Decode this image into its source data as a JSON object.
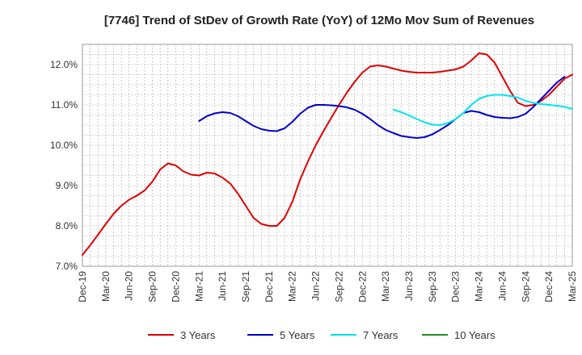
{
  "chart_data": {
    "type": "line",
    "title": "[7746]  Trend of StDev of Growth Rate (YoY) of 12Mo Mov Sum of Revenues",
    "xlabel": "",
    "ylabel": "",
    "ylim": [
      7.0,
      12.5
    ],
    "yticks": [
      7.0,
      8.0,
      9.0,
      10.0,
      11.0,
      12.0
    ],
    "ytick_labels": [
      "7.0%",
      "8.0%",
      "9.0%",
      "10.0%",
      "11.0%",
      "12.0%"
    ],
    "x_tick_labels": [
      "Dec-19",
      "Mar-20",
      "Jun-20",
      "Sep-20",
      "Dec-20",
      "Mar-21",
      "Jun-21",
      "Sep-21",
      "Dec-21",
      "Mar-22",
      "Jun-22",
      "Sep-22",
      "Dec-22",
      "Mar-23",
      "Jun-23",
      "Sep-23",
      "Dec-23",
      "Mar-24",
      "Jun-24",
      "Sep-24",
      "Dec-24",
      "Mar-25"
    ],
    "x_unit": "months since Dec-19",
    "xlim": [
      0,
      63
    ],
    "grid": true,
    "legend_position": "bottom",
    "series": [
      {
        "name": "3 Years",
        "color": "#dd0000",
        "points": [
          [
            0,
            7.28
          ],
          [
            1,
            7.52
          ],
          [
            2,
            7.78
          ],
          [
            3,
            8.05
          ],
          [
            4,
            8.3
          ],
          [
            5,
            8.5
          ],
          [
            6,
            8.65
          ],
          [
            7,
            8.75
          ],
          [
            8,
            8.88
          ],
          [
            9,
            9.1
          ],
          [
            10,
            9.4
          ],
          [
            11,
            9.55
          ],
          [
            12,
            9.5
          ],
          [
            13,
            9.35
          ],
          [
            14,
            9.27
          ],
          [
            15,
            9.25
          ],
          [
            16,
            9.32
          ],
          [
            17,
            9.3
          ],
          [
            18,
            9.2
          ],
          [
            19,
            9.05
          ],
          [
            20,
            8.8
          ],
          [
            21,
            8.5
          ],
          [
            22,
            8.2
          ],
          [
            23,
            8.05
          ],
          [
            24,
            8.0
          ],
          [
            25,
            8.0
          ],
          [
            26,
            8.2
          ],
          [
            27,
            8.6
          ],
          [
            28,
            9.15
          ],
          [
            29,
            9.6
          ],
          [
            30,
            10.0
          ],
          [
            31,
            10.35
          ],
          [
            32,
            10.68
          ],
          [
            33,
            11.0
          ],
          [
            34,
            11.3
          ],
          [
            35,
            11.57
          ],
          [
            36,
            11.8
          ],
          [
            37,
            11.95
          ],
          [
            38,
            11.98
          ],
          [
            39,
            11.95
          ],
          [
            40,
            11.9
          ],
          [
            41,
            11.85
          ],
          [
            42,
            11.82
          ],
          [
            43,
            11.8
          ],
          [
            44,
            11.8
          ],
          [
            45,
            11.8
          ],
          [
            46,
            11.82
          ],
          [
            47,
            11.85
          ],
          [
            48,
            11.88
          ],
          [
            49,
            11.95
          ],
          [
            50,
            12.1
          ],
          [
            51,
            12.28
          ],
          [
            52,
            12.25
          ],
          [
            53,
            12.05
          ],
          [
            54,
            11.7
          ],
          [
            55,
            11.35
          ],
          [
            56,
            11.05
          ],
          [
            57,
            10.97
          ],
          [
            58,
            11.0
          ],
          [
            59,
            11.1
          ],
          [
            60,
            11.25
          ],
          [
            61,
            11.45
          ],
          [
            62,
            11.65
          ],
          [
            63,
            11.75
          ]
        ]
      },
      {
        "name": "5 Years",
        "color": "#0000cc",
        "points": [
          [
            15,
            10.6
          ],
          [
            16,
            10.72
          ],
          [
            17,
            10.79
          ],
          [
            18,
            10.82
          ],
          [
            19,
            10.8
          ],
          [
            20,
            10.72
          ],
          [
            21,
            10.6
          ],
          [
            22,
            10.48
          ],
          [
            23,
            10.4
          ],
          [
            24,
            10.36
          ],
          [
            25,
            10.35
          ],
          [
            26,
            10.42
          ],
          [
            27,
            10.58
          ],
          [
            28,
            10.78
          ],
          [
            29,
            10.93
          ],
          [
            30,
            11.0
          ],
          [
            31,
            11.0
          ],
          [
            32,
            10.99
          ],
          [
            33,
            10.97
          ],
          [
            34,
            10.94
          ],
          [
            35,
            10.88
          ],
          [
            36,
            10.78
          ],
          [
            37,
            10.65
          ],
          [
            38,
            10.5
          ],
          [
            39,
            10.38
          ],
          [
            40,
            10.3
          ],
          [
            41,
            10.23
          ],
          [
            42,
            10.2
          ],
          [
            43,
            10.18
          ],
          [
            44,
            10.2
          ],
          [
            45,
            10.27
          ],
          [
            46,
            10.38
          ],
          [
            47,
            10.5
          ],
          [
            48,
            10.65
          ],
          [
            49,
            10.8
          ],
          [
            50,
            10.85
          ],
          [
            51,
            10.82
          ],
          [
            52,
            10.75
          ],
          [
            53,
            10.7
          ],
          [
            54,
            10.68
          ],
          [
            55,
            10.67
          ],
          [
            56,
            10.7
          ],
          [
            57,
            10.78
          ],
          [
            58,
            10.95
          ],
          [
            59,
            11.15
          ],
          [
            60,
            11.35
          ],
          [
            61,
            11.55
          ],
          [
            62,
            11.7
          ]
        ]
      },
      {
        "name": "7 Years",
        "color": "#00e5ee",
        "points": [
          [
            40,
            10.88
          ],
          [
            41,
            10.82
          ],
          [
            42,
            10.74
          ],
          [
            43,
            10.65
          ],
          [
            44,
            10.57
          ],
          [
            45,
            10.51
          ],
          [
            46,
            10.5
          ],
          [
            47,
            10.55
          ],
          [
            48,
            10.65
          ],
          [
            49,
            10.8
          ],
          [
            50,
            11.0
          ],
          [
            51,
            11.15
          ],
          [
            52,
            11.22
          ],
          [
            53,
            11.25
          ],
          [
            54,
            11.25
          ],
          [
            55,
            11.22
          ],
          [
            56,
            11.18
          ],
          [
            57,
            11.1
          ],
          [
            58,
            11.05
          ],
          [
            59,
            11.02
          ],
          [
            60,
            11.0
          ],
          [
            61,
            10.98
          ],
          [
            62,
            10.95
          ],
          [
            63,
            10.9
          ]
        ]
      },
      {
        "name": "10 Years",
        "color": "#228b22",
        "points": []
      }
    ]
  }
}
